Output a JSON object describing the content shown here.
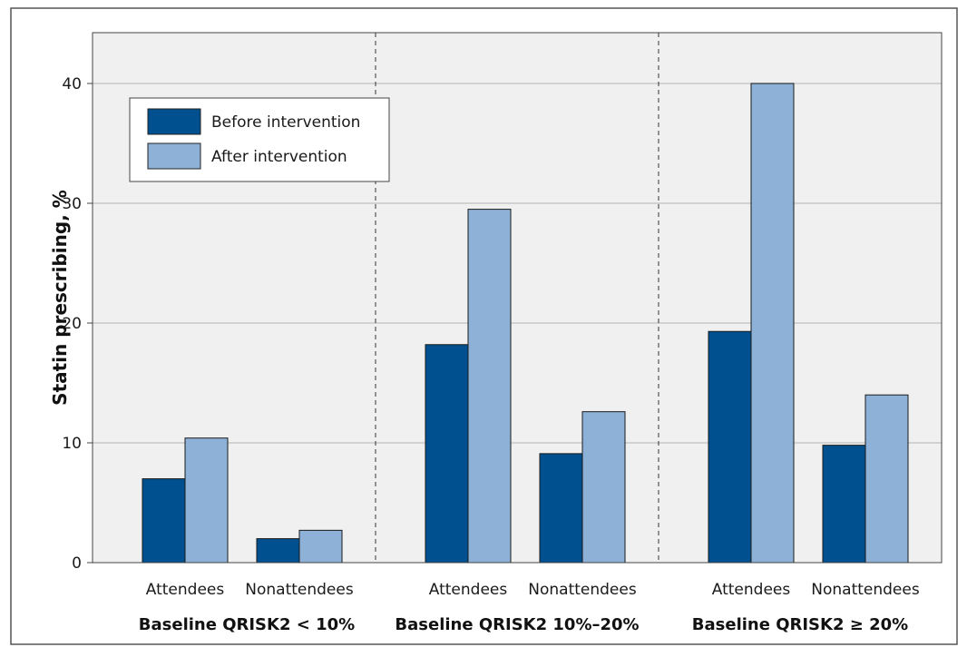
{
  "chart_data": {
    "type": "bar",
    "ylabel": "Statin prescribing, %",
    "ylim": [
      0,
      40
    ],
    "yticks": [
      0,
      10,
      20,
      30,
      40
    ],
    "grid": true,
    "legend_position": "top-left",
    "groups": [
      {
        "label": "Baseline QRISK2 < 10%",
        "categories": [
          "Attendees",
          "Nonattendees"
        ],
        "series": [
          {
            "name": "Before intervention",
            "values": [
              7.0,
              2.0
            ]
          },
          {
            "name": "After intervention",
            "values": [
              10.4,
              2.7
            ]
          }
        ]
      },
      {
        "label": "Baseline QRISK2 10%–20%",
        "categories": [
          "Attendees",
          "Nonattendees"
        ],
        "series": [
          {
            "name": "Before intervention",
            "values": [
              18.2,
              9.1
            ]
          },
          {
            "name": "After intervention",
            "values": [
              29.5,
              12.6
            ]
          }
        ]
      },
      {
        "label": "Baseline QRISK2 ≥ 20%",
        "categories": [
          "Attendees",
          "Nonattendees"
        ],
        "series": [
          {
            "name": "Before intervention",
            "values": [
              19.3,
              9.8
            ]
          },
          {
            "name": "After intervention",
            "values": [
              40.0,
              14.0
            ]
          }
        ]
      }
    ],
    "legend": [
      {
        "name": "Before intervention",
        "color": "#00508f"
      },
      {
        "name": "After intervention",
        "color": "#8eb1d8"
      }
    ],
    "colors": {
      "before": "#00508f",
      "after": "#8eb1d8",
      "plot_background": "#f0f0f0",
      "gridline": "#c8c8c8"
    }
  }
}
